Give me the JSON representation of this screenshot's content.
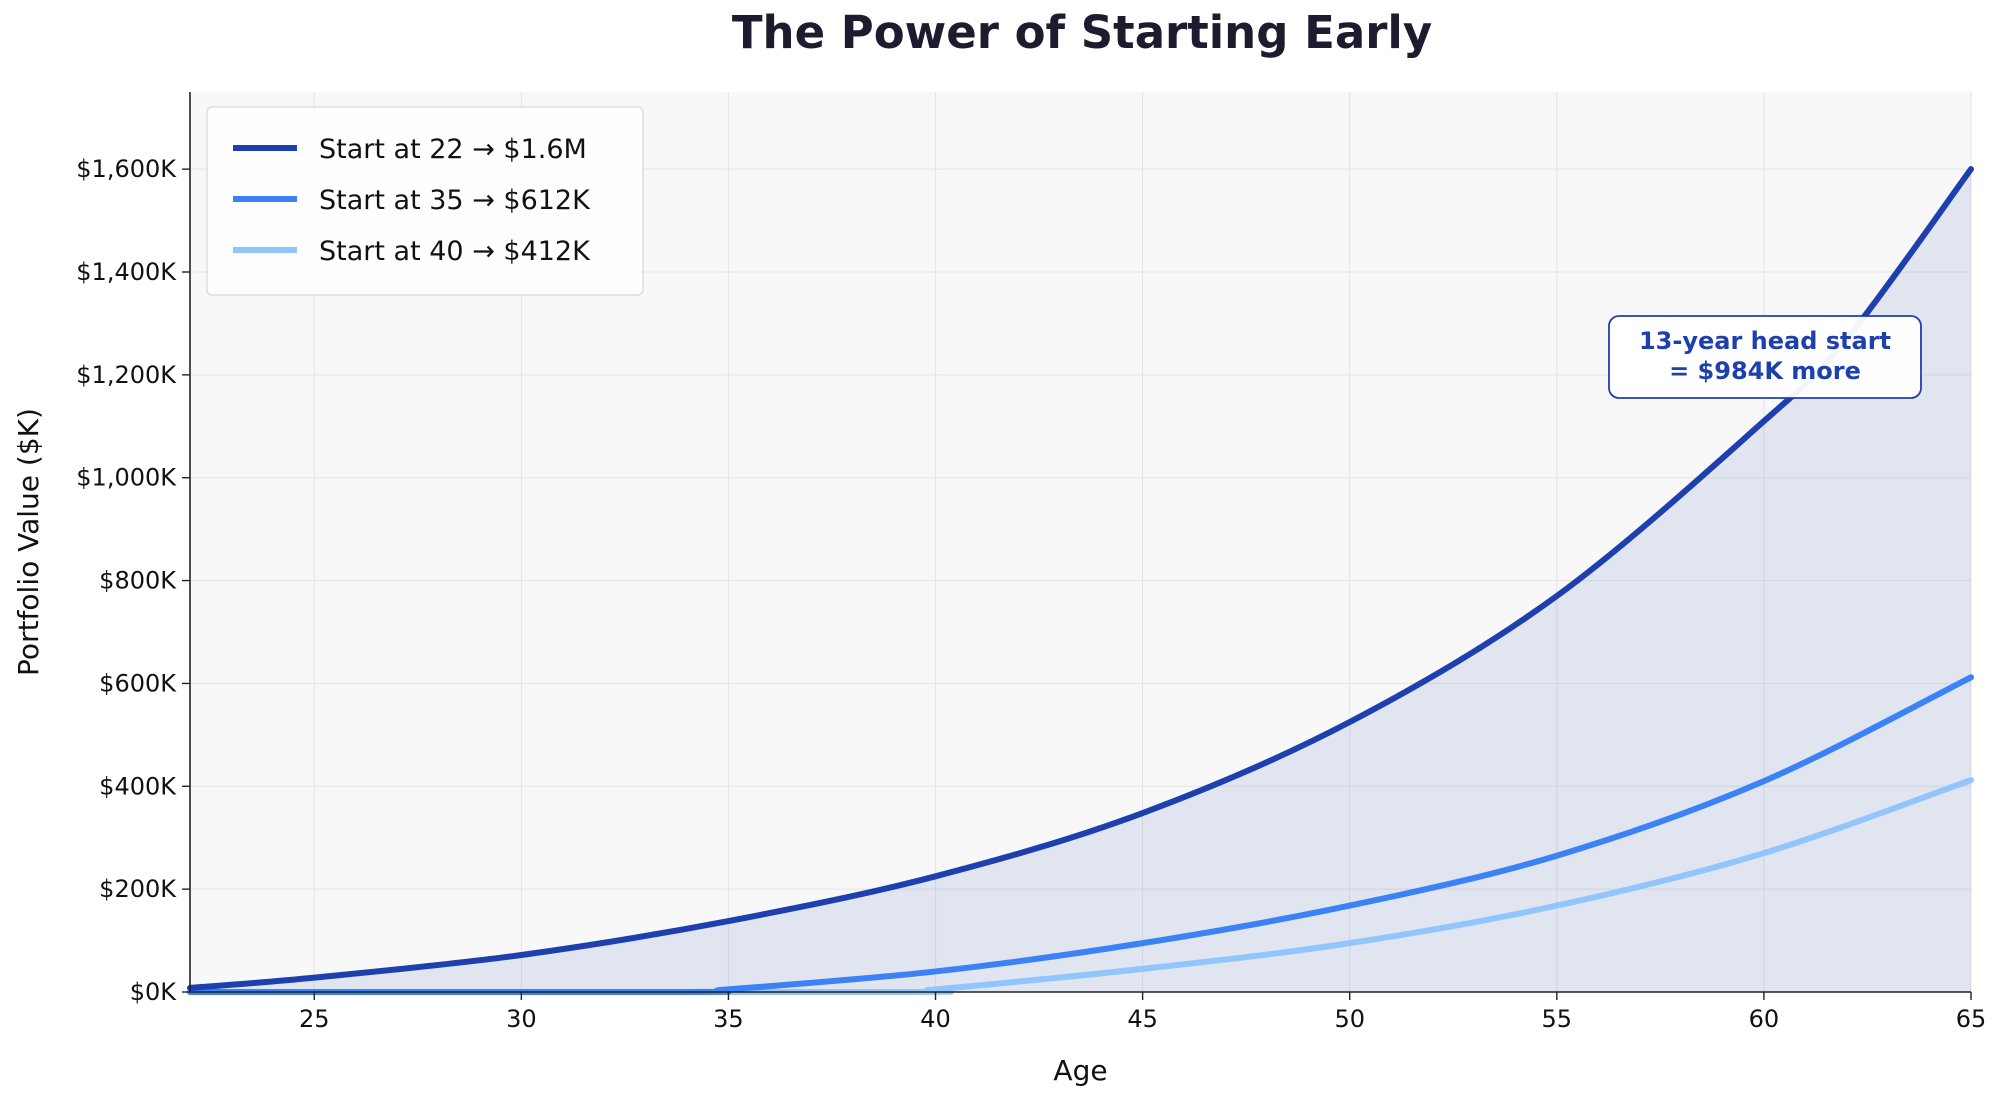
{
  "chart_data": {
    "type": "line",
    "title": "The Power of Starting Early",
    "xlabel": "Age",
    "ylabel": "Portfolio Value ($K)",
    "xlim": [
      22,
      65
    ],
    "ylim": [
      0,
      1750
    ],
    "xticks": [
      25,
      30,
      35,
      40,
      45,
      50,
      55,
      60,
      65
    ],
    "yticks": [
      0,
      200,
      400,
      600,
      800,
      1000,
      1200,
      1400,
      1600
    ],
    "ytick_labels": [
      "$0K",
      "$200K",
      "$400K",
      "$600K",
      "$800K",
      "$1,000K",
      "$1,200K",
      "$1,400K",
      "$1,600K"
    ],
    "grid": true,
    "legend_position": "top-left",
    "fill_under_first_series": true,
    "series": [
      {
        "name": "Start at 22 → $1.6M",
        "color": "#1e40af",
        "x": [
          22,
          25,
          30,
          35,
          40,
          45,
          50,
          55,
          60,
          62,
          65
        ],
        "values": [
          8,
          28,
          72,
          138,
          225,
          348,
          525,
          770,
          1110,
          1270,
          1600
        ]
      },
      {
        "name": "Start at 35 → $612K",
        "color": "#3b82f6",
        "x": [
          22,
          34,
          35,
          40,
          45,
          50,
          55,
          60,
          65
        ],
        "values": [
          0,
          0,
          5,
          40,
          95,
          168,
          265,
          410,
          612
        ]
      },
      {
        "name": "Start at 40 → $412K",
        "color": "#93c5fd",
        "x": [
          22,
          39,
          40,
          45,
          50,
          55,
          60,
          65
        ],
        "values": [
          0,
          0,
          5,
          45,
          95,
          168,
          270,
          412
        ]
      }
    ],
    "annotation": {
      "lines": [
        "13-year head start",
        "= $984K more"
      ],
      "color": "#1e40af"
    }
  }
}
